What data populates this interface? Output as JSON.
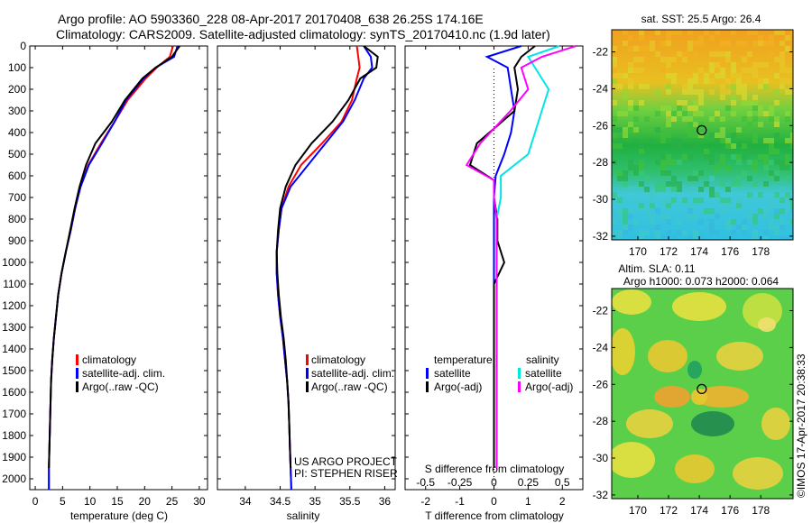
{
  "header": {
    "line1": "Argo profile: AO 5903360_228 08-Apr-2017 20170408_638 26.25S 174.16E",
    "line2": "Climatology: CARS2009. Satellite-adjusted climatology: synTS_20170410.nc (1.9d later)"
  },
  "colors": {
    "climatology": "#ff0000",
    "satellite": "#0000ff",
    "argo": "#000000",
    "satellite_salinity": "#00e5e5",
    "argo_salinity": "#ff00ff"
  },
  "depth_axis": {
    "ticks": [
      0,
      100,
      200,
      300,
      400,
      500,
      600,
      700,
      800,
      900,
      1000,
      1100,
      1200,
      1300,
      1400,
      1500,
      1600,
      1700,
      1800,
      1900,
      2000
    ],
    "range": [
      0,
      2050
    ]
  },
  "legend": {
    "climatology": "climatology",
    "satellite_adj": "satellite-adj. clim.",
    "argo": "Argo(..raw -QC)"
  },
  "diff_legend": {
    "temperature_title": "temperature",
    "salinity_title": "salinity",
    "satellite": "satellite",
    "argo": "Argo(-adj)"
  },
  "credits": {
    "project": "US ARGO PROJECT",
    "pi": "PI: STEPHEN RISER"
  },
  "right_panels": {
    "sst_title": "sat. SST: 25.5 Argo: 26.4",
    "sla_title1": "Altim. SLA: 0.11",
    "sla_title2": "Argo h1000: 0.073 h2000: 0.064",
    "lon_ticks": [
      "170",
      "172",
      "174",
      "176",
      "178"
    ],
    "lat_ticks": [
      "-22",
      "-24",
      "-26",
      "-28",
      "-30",
      "-32"
    ],
    "argo_position": {
      "lon": 174.16,
      "lat": -26.25
    },
    "lon_range": [
      168.3,
      180.1
    ],
    "lat_range": [
      -32.2,
      -20.8
    ]
  },
  "watermark": "©IMOS 17-Apr-2017 20:38:33",
  "chart_data": [
    {
      "type": "line",
      "xlabel": "temperature (deg C)",
      "ylabel": "",
      "xlim": [
        -1,
        31.5
      ],
      "ylim": [
        2050,
        0
      ],
      "xticks": [
        0,
        5,
        10,
        15,
        20,
        25,
        30
      ],
      "series": [
        {
          "name": "climatology",
          "x": [
            25.2,
            24.6,
            22.2,
            20.2,
            16.9,
            14.5,
            12.0,
            9.7,
            8.2,
            7.3,
            6.5,
            5.6,
            4.8,
            4.2,
            3.8,
            3.4,
            3.1,
            2.9,
            2.8,
            2.7,
            2.6,
            2.5,
            2.5
          ],
          "y": [
            0,
            50,
            100,
            150,
            250,
            350,
            450,
            550,
            650,
            750,
            850,
            950,
            1050,
            1150,
            1250,
            1350,
            1450,
            1550,
            1650,
            1750,
            1850,
            1950,
            2050
          ]
        },
        {
          "name": "satellite-adj. clim.",
          "x": [
            26.0,
            25.4,
            22.0,
            19.8,
            16.6,
            14.5,
            12.2,
            9.8,
            8.3,
            7.3,
            6.5,
            5.6,
            4.8,
            4.2,
            3.8,
            3.4,
            3.1,
            2.9,
            2.8,
            2.7,
            2.6,
            2.5,
            2.5
          ],
          "y": [
            0,
            50,
            100,
            150,
            250,
            350,
            450,
            550,
            650,
            750,
            850,
            950,
            1050,
            1150,
            1250,
            1350,
            1450,
            1550,
            1650,
            1750,
            1850,
            1950,
            2050
          ]
        },
        {
          "name": "Argo(..raw -QC)",
          "x": [
            26.4,
            25.0,
            22.0,
            19.6,
            16.4,
            14.0,
            11.0,
            9.3,
            8.1,
            7.2,
            6.4,
            5.6,
            4.8,
            4.2,
            3.8,
            3.4,
            3.1,
            2.9,
            2.8,
            2.7,
            2.6,
            2.5
          ],
          "y": [
            0,
            50,
            100,
            150,
            250,
            350,
            450,
            550,
            650,
            750,
            850,
            950,
            1050,
            1150,
            1250,
            1350,
            1450,
            1550,
            1650,
            1750,
            1850,
            1950
          ]
        }
      ]
    },
    {
      "type": "line",
      "xlabel": "salinity",
      "ylabel": "",
      "xlim": [
        33.6,
        36.15
      ],
      "ylim": [
        2050,
        0
      ],
      "xticks": [
        34,
        34.5,
        35,
        35.5,
        36
      ],
      "series": [
        {
          "name": "climatology",
          "x": [
            35.6,
            35.62,
            35.64,
            35.6,
            35.53,
            35.38,
            35.1,
            34.8,
            34.62,
            34.52,
            34.48,
            34.45,
            34.45,
            34.47,
            34.5,
            34.54,
            34.57,
            34.6,
            34.62,
            34.63,
            34.64,
            34.65,
            34.66
          ],
          "y": [
            0,
            50,
            100,
            150,
            250,
            350,
            450,
            550,
            650,
            750,
            850,
            950,
            1050,
            1150,
            1250,
            1350,
            1450,
            1550,
            1650,
            1750,
            1850,
            1950,
            2050
          ]
        },
        {
          "name": "satellite-adj. clim.",
          "x": [
            35.7,
            35.8,
            35.82,
            35.7,
            35.57,
            35.4,
            35.15,
            34.9,
            34.65,
            34.52,
            34.48,
            34.45,
            34.45,
            34.47,
            34.5,
            34.54,
            34.57,
            34.6,
            34.62,
            34.63,
            34.64,
            34.65,
            34.66
          ],
          "y": [
            0,
            50,
            100,
            150,
            250,
            350,
            450,
            550,
            650,
            750,
            850,
            950,
            1050,
            1150,
            1250,
            1350,
            1450,
            1550,
            1650,
            1750,
            1850,
            1950,
            2050
          ]
        },
        {
          "name": "Argo(..raw -QC)",
          "x": [
            35.7,
            35.9,
            35.88,
            35.65,
            35.48,
            35.25,
            34.95,
            34.72,
            34.58,
            34.5,
            34.47,
            34.45,
            34.46,
            34.48,
            34.51,
            34.55,
            34.58,
            34.6,
            34.62,
            34.63,
            34.64,
            34.65
          ],
          "y": [
            0,
            50,
            100,
            150,
            250,
            350,
            450,
            550,
            650,
            750,
            850,
            950,
            1050,
            1150,
            1250,
            1350,
            1450,
            1550,
            1650,
            1750,
            1850,
            1950
          ]
        }
      ]
    },
    {
      "type": "line",
      "xlabel": "T difference from climatology",
      "secondary_xlabel": "S difference from climatology",
      "xlim": [
        -2.6,
        2.6
      ],
      "ylim": [
        2050,
        0
      ],
      "xticks": [
        -2,
        -1,
        0,
        1,
        2
      ],
      "secondary_xticks": [
        -0.5,
        -0.25,
        0,
        0.25,
        0.5
      ],
      "series": [
        {
          "name": "temperature satellite",
          "x": [
            0.8,
            -0.2,
            0.4,
            0.5,
            0.6,
            0.5,
            0.3,
            0.05,
            0,
            0,
            0,
            0,
            0,
            0,
            0,
            0,
            0,
            0,
            0,
            0
          ],
          "y": [
            0,
            50,
            100,
            200,
            300,
            400,
            500,
            600,
            700,
            800,
            900,
            1000,
            1100,
            1200,
            1300,
            1400,
            1500,
            1600,
            1700,
            1950
          ]
        },
        {
          "name": "temperature Argo(-adj)",
          "x": [
            1.2,
            0.8,
            0.6,
            0.7,
            0.6,
            -0.5,
            -0.7,
            0.0,
            0.0,
            0.1,
            0.1,
            0.3,
            0.0,
            0.0,
            0.0,
            0.0,
            0.0,
            0.0,
            0.0,
            0.0
          ],
          "y": [
            0,
            50,
            100,
            200,
            300,
            450,
            550,
            620,
            700,
            800,
            900,
            1000,
            1100,
            1200,
            1300,
            1400,
            1500,
            1600,
            1700,
            1950
          ]
        },
        {
          "name": "salinity satellite",
          "x": [
            0.48,
            0.25,
            0.3,
            0.4,
            0.35,
            0.3,
            0.25,
            0.05,
            0.05,
            0.02,
            0.02,
            0.02,
            0.02,
            0.02,
            0.02,
            0.02,
            0.02,
            0.02,
            0.02,
            0.02
          ],
          "y": [
            0,
            50,
            100,
            200,
            300,
            400,
            500,
            600,
            700,
            800,
            900,
            1000,
            1100,
            1200,
            1300,
            1400,
            1500,
            1600,
            1700,
            1950
          ]
        },
        {
          "name": "salinity Argo(-adj)",
          "x": [
            0.6,
            0.35,
            0.2,
            0.25,
            0.12,
            -0.1,
            -0.2,
            0.0,
            0.0,
            0.02,
            0.02,
            0.02,
            0.02,
            0.02,
            0.02,
            0.02,
            0.02,
            0.02,
            0.02,
            0.02
          ],
          "y": [
            0,
            50,
            100,
            200,
            300,
            450,
            550,
            620,
            700,
            800,
            900,
            1000,
            1100,
            1200,
            1300,
            1400,
            1500,
            1600,
            1700,
            1950
          ]
        }
      ]
    }
  ]
}
